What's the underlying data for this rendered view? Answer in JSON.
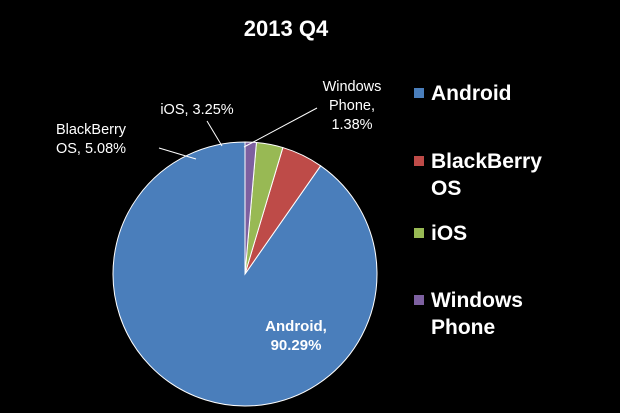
{
  "chart_data": {
    "type": "pie",
    "title": "2013 Q4",
    "start_angle_deg": 0,
    "direction": "counterclockwise",
    "legend_position": "right",
    "slices": [
      {
        "name": "Android",
        "name_lines": [
          "Android"
        ],
        "value": 90.29,
        "label_lines": [
          "Android,",
          "90.29%"
        ],
        "color": "#4a7ebb"
      },
      {
        "name": "BlackBerry OS",
        "name_lines": [
          "BlackBerry",
          "OS"
        ],
        "value": 5.08,
        "label_lines": [
          "BlackBerry",
          "OS, 5.08%"
        ],
        "color": "#be4b48"
      },
      {
        "name": "iOS",
        "name_lines": [
          "iOS"
        ],
        "value": 3.25,
        "label_lines": [
          "iOS, 3.25%"
        ],
        "color": "#98b954"
      },
      {
        "name": "Windows Phone",
        "name_lines": [
          "Windows",
          "Phone"
        ],
        "value": 1.38,
        "label_lines": [
          "Windows",
          "Phone,",
          "1.38%"
        ],
        "color": "#7d60a0"
      }
    ]
  }
}
